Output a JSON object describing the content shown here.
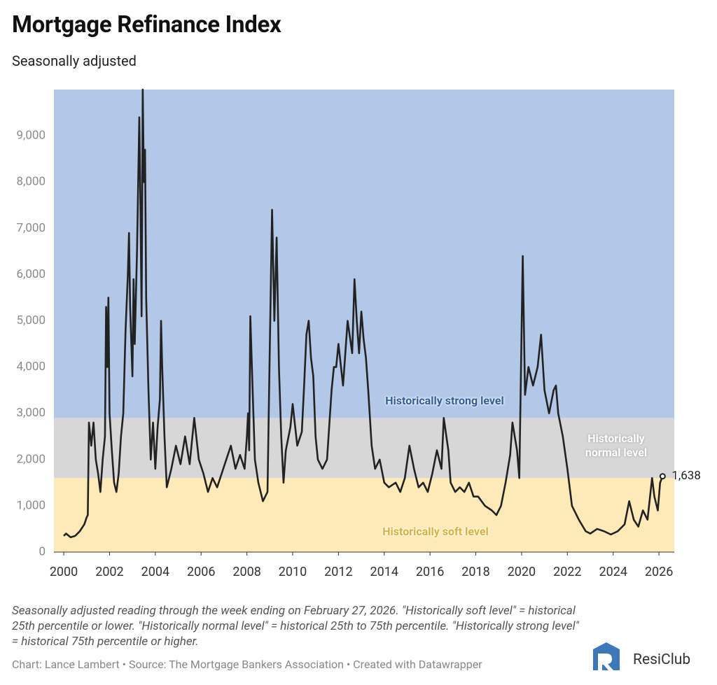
{
  "chart_data": {
    "type": "line",
    "title": "Mortgage Refinance Index",
    "subtitle": "Seasonally adjusted",
    "notes": "Seasonally adjusted reading through the week ending on February 27, 2026. \"Historically soft level\" = historical 25th percentile or lower. \"Historically normal level\" = historical 25th to 75th percentile. \"Historically strong level\" = historical 75th percentile or higher.",
    "credit": "Chart: Lance Lambert • Source: The Mortgage Bankers Association • Created with Datawrapper",
    "brand": "ResiClub",
    "color": "#222222",
    "grid": false,
    "xlim": [
      1999.57,
      2026.67
    ],
    "xticks": [
      2000,
      2002,
      2004,
      2006,
      2008,
      2010,
      2012,
      2014,
      2016,
      2018,
      2020,
      2022,
      2024,
      2026
    ],
    "ylim": [
      0,
      10000
    ],
    "yticks": [
      0,
      {
        "value": 1000,
        "label": "1,000"
      },
      {
        "value": 2000,
        "label": "2,000"
      },
      {
        "value": 3000,
        "label": "3,000"
      },
      {
        "value": 4000,
        "label": "4,000"
      },
      {
        "value": 5000,
        "label": "5,000"
      },
      {
        "value": 6000,
        "label": "6,000"
      },
      {
        "value": 7000,
        "label": "7,000"
      },
      {
        "value": 8000,
        "label": "8,000"
      },
      {
        "value": 9000,
        "label": "9,000"
      }
    ],
    "bands": [
      {
        "label": "Historically soft level",
        "from": 0,
        "to": 1600,
        "color": "#fdeab8",
        "label_color": "#d9b23b"
      },
      {
        "label": "Historically normal level",
        "from": 1600,
        "to": 2900,
        "color": "#d7d7d7",
        "label_color": "#ffffff"
      },
      {
        "label": "Historically strong level",
        "from": 2900,
        "to": 10000,
        "color": "#b3c7e6",
        "label_color": "#2f5e9c"
      }
    ],
    "end_label": "1,638",
    "x": [
      2000.0,
      2000.1,
      2000.3,
      2000.5,
      2000.7,
      2000.9,
      2001.0,
      2001.05,
      2001.1,
      2001.2,
      2001.3,
      2001.4,
      2001.5,
      2001.6,
      2001.7,
      2001.8,
      2001.85,
      2001.9,
      2001.95,
      2002.0,
      2002.1,
      2002.2,
      2002.3,
      2002.4,
      2002.5,
      2002.6,
      2002.7,
      2002.8,
      2002.85,
      2002.9,
      2003.0,
      2003.05,
      2003.1,
      2003.2,
      2003.3,
      2003.35,
      2003.4,
      2003.45,
      2003.5,
      2003.55,
      2003.6,
      2003.7,
      2003.8,
      2003.9,
      2004.0,
      2004.1,
      2004.2,
      2004.25,
      2004.3,
      2004.4,
      2004.5,
      2004.7,
      2004.9,
      2005.1,
      2005.3,
      2005.5,
      2005.7,
      2005.9,
      2006.1,
      2006.3,
      2006.5,
      2006.7,
      2006.9,
      2007.1,
      2007.3,
      2007.5,
      2007.7,
      2007.9,
      2008.0,
      2008.05,
      2008.1,
      2008.15,
      2008.25,
      2008.35,
      2008.5,
      2008.7,
      2008.9,
      2009.0,
      2009.1,
      2009.2,
      2009.3,
      2009.4,
      2009.5,
      2009.6,
      2009.7,
      2009.9,
      2010.0,
      2010.2,
      2010.4,
      2010.5,
      2010.6,
      2010.7,
      2010.8,
      2010.9,
      2011.0,
      2011.1,
      2011.3,
      2011.5,
      2011.7,
      2011.8,
      2011.9,
      2012.0,
      2012.2,
      2012.4,
      2012.6,
      2012.7,
      2012.8,
      2012.9,
      2013.0,
      2013.1,
      2013.2,
      2013.3,
      2013.45,
      2013.6,
      2013.8,
      2014.0,
      2014.2,
      2014.5,
      2014.7,
      2014.9,
      2015.1,
      2015.3,
      2015.5,
      2015.7,
      2015.9,
      2016.1,
      2016.3,
      2016.5,
      2016.6,
      2016.8,
      2016.9,
      2017.1,
      2017.3,
      2017.5,
      2017.7,
      2017.9,
      2018.1,
      2018.4,
      2018.7,
      2018.9,
      2019.1,
      2019.3,
      2019.5,
      2019.6,
      2019.8,
      2019.9,
      2020.05,
      2020.15,
      2020.3,
      2020.5,
      2020.7,
      2020.85,
      2021.0,
      2021.2,
      2021.4,
      2021.5,
      2021.6,
      2021.8,
      2022.0,
      2022.2,
      2022.5,
      2022.8,
      2023.0,
      2023.3,
      2023.6,
      2023.9,
      2024.2,
      2024.5,
      2024.7,
      2024.9,
      2025.1,
      2025.3,
      2025.5,
      2025.7,
      2025.8,
      2025.95,
      2026.05,
      2026.16
    ],
    "values": [
      350,
      400,
      320,
      350,
      450,
      600,
      750,
      800,
      2800,
      2300,
      2800,
      2000,
      1700,
      1300,
      2000,
      2500,
      5300,
      4000,
      5500,
      3000,
      2200,
      1500,
      1300,
      1700,
      2500,
      3000,
      4800,
      6000,
      6900,
      5300,
      3800,
      5900,
      4500,
      6500,
      9400,
      7500,
      5100,
      10000,
      8000,
      8700,
      5500,
      3500,
      2000,
      2800,
      1800,
      2700,
      3300,
      5000,
      4000,
      2500,
      1400,
      1800,
      2300,
      1900,
      2500,
      1900,
      2900,
      2000,
      1700,
      1300,
      1600,
      1400,
      1700,
      2000,
      2300,
      1800,
      2100,
      1800,
      2500,
      3000,
      2200,
      5100,
      3500,
      2000,
      1500,
      1100,
      1300,
      4400,
      7400,
      5000,
      6800,
      4000,
      2500,
      1500,
      2200,
      2700,
      3200,
      2300,
      2600,
      3600,
      4700,
      5000,
      4200,
      3800,
      2500,
      2000,
      1800,
      2000,
      3500,
      4000,
      4000,
      4500,
      3600,
      5000,
      4300,
      5900,
      5000,
      4300,
      5200,
      4600,
      4200,
      3500,
      2300,
      1800,
      2000,
      1500,
      1400,
      1500,
      1300,
      1600,
      2300,
      1800,
      1400,
      1500,
      1300,
      1700,
      2200,
      1800,
      2900,
      2200,
      1500,
      1300,
      1400,
      1300,
      1500,
      1200,
      1200,
      1000,
      900,
      800,
      1000,
      1500,
      2100,
      2800,
      2200,
      1600,
      6400,
      3400,
      4000,
      3600,
      4000,
      4700,
      3500,
      3000,
      3500,
      3600,
      3000,
      2500,
      1800,
      1000,
      700,
      450,
      400,
      500,
      450,
      380,
      450,
      600,
      1100,
      700,
      550,
      900,
      700,
      1600,
      1200,
      900,
      1500,
      1638
    ]
  }
}
